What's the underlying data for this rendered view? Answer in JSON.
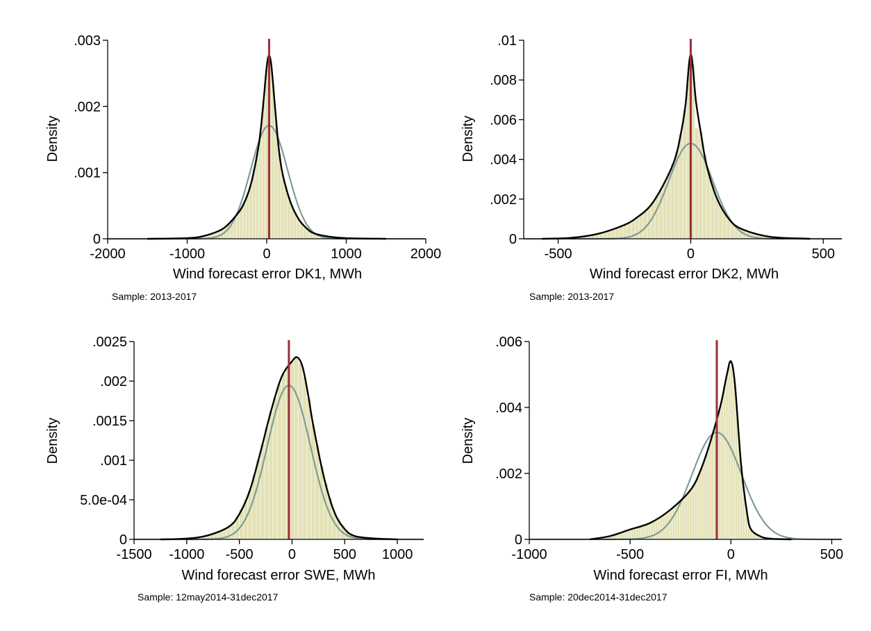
{
  "figure": {
    "background": "#ffffff"
  },
  "colors": {
    "histogram": "#e4e2b6",
    "histogram_stroke": "#f6f5e6",
    "kernel_density": "#000000",
    "normal_density": "#7c9c98",
    "mean_line": "#9b2d3b"
  },
  "chart_data": [
    {
      "type": "bar",
      "panel": "top-left",
      "ylabel": "Density",
      "xlabel": "Wind forecast error DK1, MWh",
      "note": "Sample: 2013-2017",
      "xlim": [
        -2000,
        2000
      ],
      "ylim": [
        0,
        0.003
      ],
      "x_ticks": [
        -2000,
        -1000,
        0,
        1000,
        2000
      ],
      "x_tick_labels": [
        "-2000",
        "-1000",
        "0",
        "1000",
        "2000"
      ],
      "y_ticks": [
        0,
        0.001,
        0.002,
        0.003
      ],
      "y_tick_labels": [
        "0",
        ".001",
        ".002",
        ".003"
      ],
      "mean_line_x": 30,
      "normal_fit": {
        "mean": 30,
        "sd": 233
      },
      "kernel_density": {
        "x": [
          -1500,
          -1000,
          -800,
          -600,
          -500,
          -400,
          -300,
          -200,
          -100,
          -50,
          0,
          30,
          60,
          100,
          150,
          200,
          300,
          400,
          500,
          600,
          800,
          1000,
          1500
        ],
        "y": [
          0,
          1e-05,
          4e-05,
          0.00012,
          0.0002,
          0.00033,
          0.0005,
          0.00082,
          0.00142,
          0.00195,
          0.0026,
          0.00277,
          0.0026,
          0.00205,
          0.00138,
          0.00098,
          0.00055,
          0.0003,
          0.00016,
          8e-05,
          3e-05,
          1e-05,
          0
        ]
      },
      "histogram": {
        "start": -1300,
        "width": 40,
        "range": [
          -1300,
          1700
        ],
        "peak_bars": [
          {
            "x": 0,
            "value": 0.0026
          },
          {
            "x": 40,
            "value": 0.00264
          }
        ]
      }
    },
    {
      "type": "bar",
      "panel": "top-right",
      "ylabel": "Density",
      "xlabel": "Wind forecast error DK2, MWh",
      "note": "Sample: 2013-2017",
      "xlim": [
        -630,
        570
      ],
      "ylim": [
        0,
        0.01
      ],
      "x_ticks": [
        -500,
        0,
        500
      ],
      "x_tick_labels": [
        "-500",
        "0",
        "500"
      ],
      "y_ticks": [
        0,
        0.002,
        0.004,
        0.006,
        0.008,
        0.01
      ],
      "y_tick_labels": [
        "0",
        ".002",
        ".004",
        ".006",
        ".008",
        ".01"
      ],
      "mean_line_x": 0,
      "normal_fit": {
        "mean": 0,
        "sd": 83
      },
      "kernel_density": {
        "x": [
          -560,
          -450,
          -350,
          -250,
          -200,
          -150,
          -100,
          -60,
          -40,
          -20,
          0,
          20,
          40,
          60,
          100,
          150,
          200,
          300,
          450
        ],
        "y": [
          0,
          5e-05,
          0.00025,
          0.0007,
          0.0011,
          0.0017,
          0.0028,
          0.004,
          0.0051,
          0.0067,
          0.0093,
          0.0069,
          0.0052,
          0.0037,
          0.002,
          0.0009,
          0.00045,
          0.0001,
          0
        ]
      },
      "histogram": {
        "start": -450,
        "width": 15,
        "range": [
          -450,
          450
        ],
        "peak_bars": [
          {
            "x": 0,
            "value": 0.0088
          },
          {
            "x": 15,
            "value": 0.0056
          }
        ]
      }
    },
    {
      "type": "bar",
      "panel": "bottom-left",
      "ylabel": "Density",
      "xlabel": "Wind forecast error SWE, MWh",
      "note": "Sample: 12may2014-31dec2017",
      "xlim": [
        -1500,
        1250
      ],
      "ylim": [
        0,
        0.0025
      ],
      "x_ticks": [
        -1500,
        -1000,
        -500,
        0,
        500,
        1000
      ],
      "x_tick_labels": [
        "-1500",
        "-1000",
        "-500",
        "0",
        "500",
        "1000"
      ],
      "y_ticks": [
        0,
        0.0005,
        0.001,
        0.0015,
        0.002,
        0.0025
      ],
      "y_tick_labels": [
        "0",
        "5.0e-04",
        ".001",
        ".0015",
        ".002",
        ".0025"
      ],
      "mean_line_x": -30,
      "normal_fit": {
        "mean": -30,
        "sd": 205
      },
      "kernel_density": {
        "x": [
          -1250,
          -1000,
          -800,
          -600,
          -500,
          -400,
          -300,
          -200,
          -100,
          0,
          50,
          100,
          150,
          200,
          300,
          400,
          500,
          600,
          800,
          1000
        ],
        "y": [
          0,
          1e-05,
          5e-05,
          0.00016,
          0.00032,
          0.00062,
          0.0011,
          0.00162,
          0.00205,
          0.00225,
          0.0023,
          0.00218,
          0.00185,
          0.00145,
          0.0008,
          0.00035,
          0.00013,
          4e-05,
          1e-05,
          0
        ]
      },
      "histogram": {
        "start": -1100,
        "width": 40,
        "range": [
          -1100,
          1100
        ],
        "peak_bars": []
      }
    },
    {
      "type": "bar",
      "panel": "bottom-right",
      "ylabel": "Density",
      "xlabel": "Wind forecast error FI, MWh",
      "note": "Sample: 20dec2014-31dec2017",
      "xlim": [
        -1000,
        550
      ],
      "ylim": [
        0,
        0.006
      ],
      "x_ticks": [
        -1000,
        -500,
        0,
        500
      ],
      "x_tick_labels": [
        "-1000",
        "-500",
        "0",
        "500"
      ],
      "y_ticks": [
        0,
        0.002,
        0.004,
        0.006
      ],
      "y_tick_labels": [
        "0",
        ".002",
        ".004",
        ".006"
      ],
      "mean_line_x": -70,
      "normal_fit": {
        "mean": -70,
        "sd": 123
      },
      "kernel_density": {
        "x": [
          -700,
          -600,
          -500,
          -400,
          -300,
          -200,
          -150,
          -100,
          -50,
          -20,
          0,
          20,
          50,
          80,
          100,
          150,
          200,
          300
        ],
        "y": [
          0,
          0.0001,
          0.0003,
          0.0005,
          0.0009,
          0.0015,
          0.0021,
          0.003,
          0.0041,
          0.005,
          0.0054,
          0.0047,
          0.0023,
          0.0008,
          0.0003,
          8e-05,
          2e-05,
          0
        ]
      },
      "histogram": {
        "start": -650,
        "width": 12,
        "range": [
          -650,
          250
        ],
        "peak_bars": [
          {
            "x": 0,
            "value": 0.0053
          },
          {
            "x": 12,
            "value": 0.0053
          },
          {
            "x": 48,
            "value": 0.0023
          }
        ]
      }
    }
  ]
}
